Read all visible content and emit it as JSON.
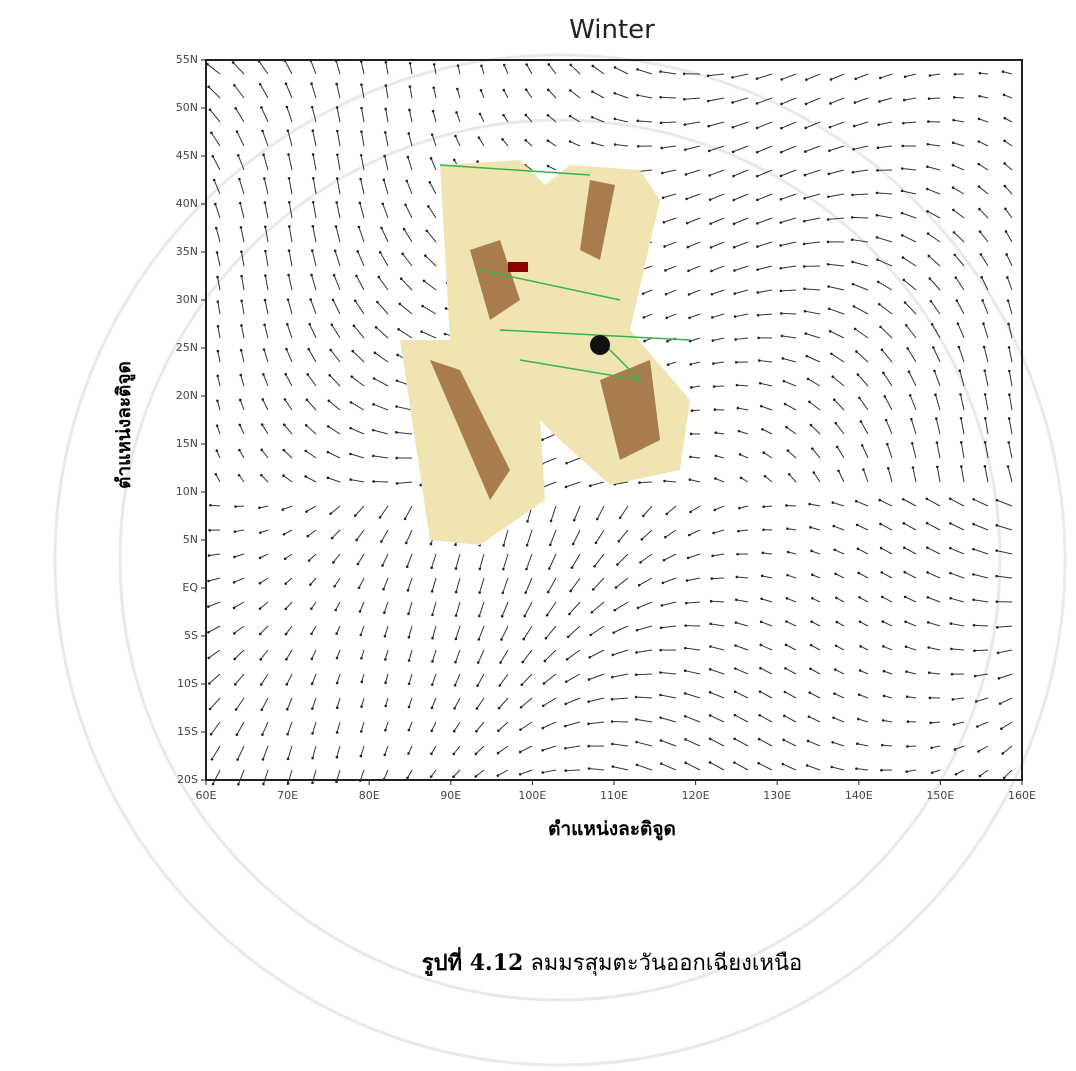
{
  "figure": {
    "title": "Winter",
    "yticks": [
      "55N",
      "50N",
      "45N",
      "40N",
      "35N",
      "30N",
      "25N",
      "20N",
      "15N",
      "10N",
      "5N",
      "EQ",
      "5S",
      "10S",
      "15S",
      "20S"
    ],
    "xticks": [
      "60E",
      "70E",
      "80E",
      "90E",
      "100E",
      "110E",
      "120E",
      "130E",
      "140E",
      "150E",
      "160E"
    ],
    "ylabel": "ตำแหน่งละติจูด",
    "xlabel": "ตำแหน่งละติจูด"
  },
  "caption": {
    "number": "รูปที่ 4.12",
    "text": "ลมมรสุมตะวันออกเฉียงเหนือ"
  }
}
